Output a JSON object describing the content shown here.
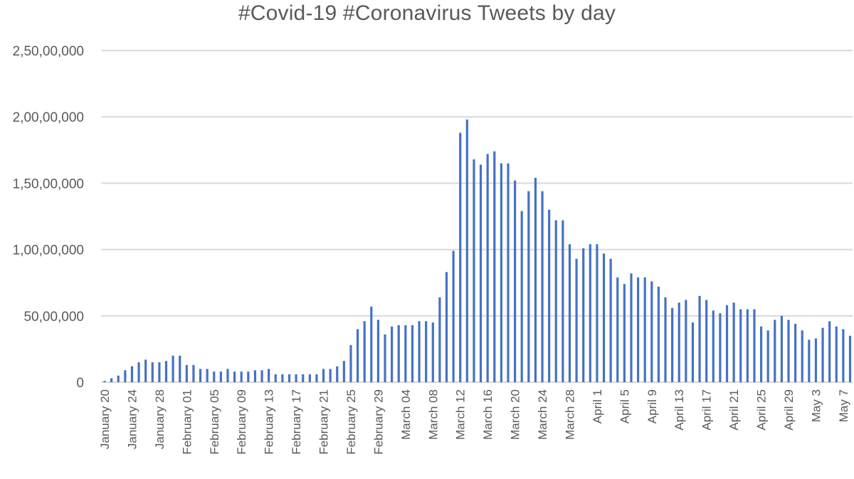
{
  "chart_data": {
    "type": "bar",
    "title": "#Covid-19 #Coronavirus Tweets by day",
    "xlabel": "",
    "ylabel": "",
    "ylim": [
      0,
      25000000
    ],
    "grid": true,
    "legend": null,
    "bar_color": "#4472c4",
    "grid_color": "#d9d9d9",
    "text_color": "#595959",
    "y_ticks": [
      {
        "value": 0,
        "label": "0"
      },
      {
        "value": 5000000,
        "label": "50,00,000"
      },
      {
        "value": 10000000,
        "label": "1,00,00,000"
      },
      {
        "value": 15000000,
        "label": "1,50,00,000"
      },
      {
        "value": 20000000,
        "label": "2,00,00,000"
      },
      {
        "value": 25000000,
        "label": "2,50,00,000"
      }
    ],
    "x_tick_labels": [
      {
        "index": 0,
        "label": "January 20"
      },
      {
        "index": 4,
        "label": "January 24"
      },
      {
        "index": 8,
        "label": "January 28"
      },
      {
        "index": 12,
        "label": "February 01"
      },
      {
        "index": 16,
        "label": "February 05"
      },
      {
        "index": 20,
        "label": "February 09"
      },
      {
        "index": 24,
        "label": "February 13"
      },
      {
        "index": 28,
        "label": "February 17"
      },
      {
        "index": 32,
        "label": "February 21"
      },
      {
        "index": 36,
        "label": "February 25"
      },
      {
        "index": 40,
        "label": "February 29"
      },
      {
        "index": 44,
        "label": "March 04"
      },
      {
        "index": 48,
        "label": "March 08"
      },
      {
        "index": 52,
        "label": "March 12"
      },
      {
        "index": 56,
        "label": "March 16"
      },
      {
        "index": 60,
        "label": "March 20"
      },
      {
        "index": 64,
        "label": "March 24"
      },
      {
        "index": 68,
        "label": "March 28"
      },
      {
        "index": 72,
        "label": "April 1"
      },
      {
        "index": 76,
        "label": "April 5"
      },
      {
        "index": 80,
        "label": "April 9"
      },
      {
        "index": 84,
        "label": "April 13"
      },
      {
        "index": 88,
        "label": "April 17"
      },
      {
        "index": 92,
        "label": "April 21"
      },
      {
        "index": 96,
        "label": "April 25"
      },
      {
        "index": 100,
        "label": "April 29"
      },
      {
        "index": 104,
        "label": "May 3"
      },
      {
        "index": 108,
        "label": "May 7"
      }
    ],
    "categories": [
      "Jan 20",
      "Jan 21",
      "Jan 22",
      "Jan 23",
      "Jan 24",
      "Jan 25",
      "Jan 26",
      "Jan 27",
      "Jan 28",
      "Jan 29",
      "Jan 30",
      "Jan 31",
      "Feb 01",
      "Feb 02",
      "Feb 03",
      "Feb 04",
      "Feb 05",
      "Feb 06",
      "Feb 07",
      "Feb 08",
      "Feb 09",
      "Feb 10",
      "Feb 11",
      "Feb 12",
      "Feb 13",
      "Feb 14",
      "Feb 15",
      "Feb 16",
      "Feb 17",
      "Feb 18",
      "Feb 19",
      "Feb 20",
      "Feb 21",
      "Feb 22",
      "Feb 23",
      "Feb 24",
      "Feb 25",
      "Feb 26",
      "Feb 27",
      "Feb 28",
      "Feb 29",
      "Mar 01",
      "Mar 02",
      "Mar 03",
      "Mar 04",
      "Mar 05",
      "Mar 06",
      "Mar 07",
      "Mar 08",
      "Mar 09",
      "Mar 10",
      "Mar 11",
      "Mar 12",
      "Mar 13",
      "Mar 14",
      "Mar 15",
      "Mar 16",
      "Mar 17",
      "Mar 18",
      "Mar 19",
      "Mar 20",
      "Mar 21",
      "Mar 22",
      "Mar 23",
      "Mar 24",
      "Mar 25",
      "Mar 26",
      "Mar 27",
      "Mar 28",
      "Mar 29",
      "Mar 30",
      "Mar 31",
      "Apr 1",
      "Apr 2",
      "Apr 3",
      "Apr 4",
      "Apr 5",
      "Apr 6",
      "Apr 7",
      "Apr 8",
      "Apr 9",
      "Apr 10",
      "Apr 11",
      "Apr 12",
      "Apr 13",
      "Apr 14",
      "Apr 15",
      "Apr 16",
      "Apr 17",
      "Apr 18",
      "Apr 19",
      "Apr 20",
      "Apr 21",
      "Apr 22",
      "Apr 23",
      "Apr 24",
      "Apr 25",
      "Apr 26",
      "Apr 27",
      "Apr 28",
      "Apr 29",
      "Apr 30",
      "May 1",
      "May 2",
      "May 3",
      "May 4",
      "May 5",
      "May 6",
      "May 7",
      "May 8"
    ],
    "series": [
      {
        "name": "Tweets",
        "values": [
          100000,
          300000,
          500000,
          900000,
          1200000,
          1500000,
          1700000,
          1500000,
          1500000,
          1600000,
          2000000,
          2000000,
          1300000,
          1300000,
          1000000,
          1000000,
          800000,
          800000,
          1000000,
          800000,
          800000,
          800000,
          900000,
          900000,
          1000000,
          600000,
          600000,
          600000,
          600000,
          600000,
          600000,
          600000,
          1000000,
          1000000,
          1200000,
          1600000,
          2800000,
          4000000,
          4600000,
          5700000,
          4700000,
          3600000,
          4200000,
          4300000,
          4300000,
          4300000,
          4600000,
          4600000,
          4500000,
          6400000,
          8300000,
          9900000,
          18800000,
          19800000,
          16800000,
          16400000,
          17200000,
          17400000,
          16500000,
          16500000,
          15200000,
          12900000,
          14400000,
          15400000,
          14400000,
          13000000,
          12200000,
          12200000,
          10400000,
          9300000,
          10100000,
          10400000,
          10400000,
          9700000,
          9300000,
          7900000,
          7400000,
          8200000,
          7900000,
          7900000,
          7600000,
          7200000,
          6400000,
          5600000,
          6000000,
          6200000,
          4500000,
          6500000,
          6200000,
          5400000,
          5200000,
          5800000,
          6000000,
          5500000,
          5500000,
          5500000,
          4200000,
          3900000,
          4700000,
          5000000,
          4700000,
          4400000,
          3900000,
          3200000,
          3300000,
          4100000,
          4600000,
          4200000,
          4000000,
          3500000
        ]
      }
    ]
  }
}
